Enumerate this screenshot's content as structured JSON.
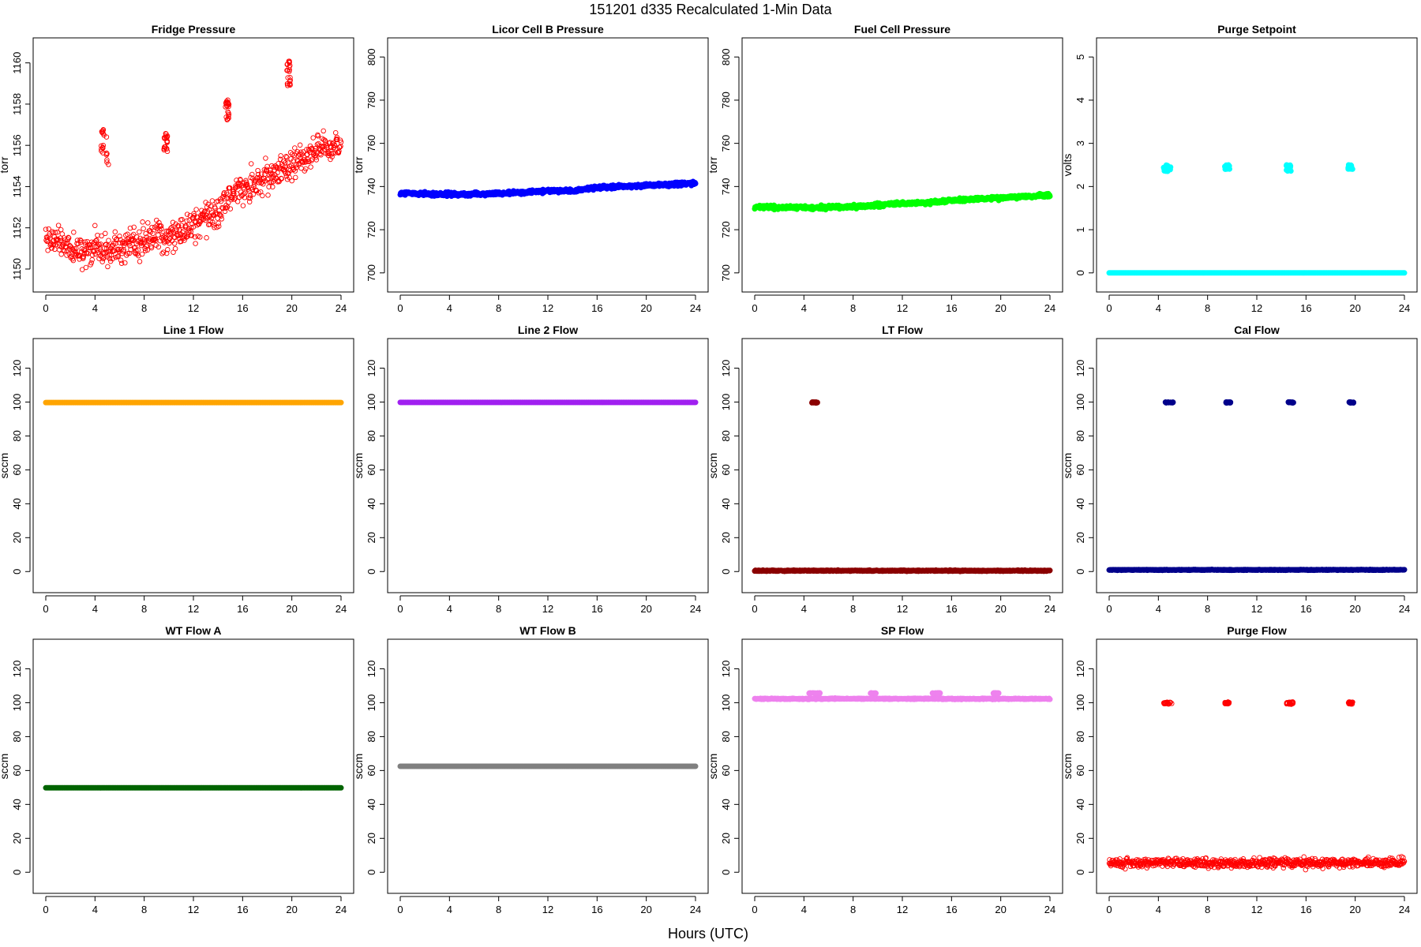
{
  "figure": {
    "title": "151201   d335   Recalculated 1-Min Data",
    "xlabel": "Hours (UTC)"
  },
  "chart_data": [
    {
      "type": "scatter",
      "title": "Fridge Pressure",
      "ylabel": "torr",
      "color": "#ff0000",
      "marker": "open-circle",
      "xlim": [
        0,
        24
      ],
      "x_ticks": [
        0,
        4,
        8,
        12,
        16,
        20,
        24
      ],
      "ylim": [
        1149.5,
        1160.6
      ],
      "y_ticks": [
        1150,
        1152,
        1154,
        1156,
        1158,
        1160
      ],
      "trend": [
        [
          0,
          1151.5
        ],
        [
          1,
          1151.4
        ],
        [
          2,
          1151.0
        ],
        [
          3,
          1150.8
        ],
        [
          4,
          1151.1
        ],
        [
          5,
          1150.9
        ],
        [
          6,
          1151.0
        ],
        [
          7,
          1151.2
        ],
        [
          8,
          1151.4
        ],
        [
          9,
          1151.6
        ],
        [
          10,
          1151.6
        ],
        [
          11,
          1151.8
        ],
        [
          12,
          1152.1
        ],
        [
          13,
          1152.5
        ],
        [
          14,
          1152.8
        ],
        [
          15,
          1153.6
        ],
        [
          16,
          1154.0
        ],
        [
          17,
          1154.2
        ],
        [
          18,
          1154.4
        ],
        [
          19,
          1154.8
        ],
        [
          20,
          1155.1
        ],
        [
          21,
          1155.5
        ],
        [
          22,
          1155.8
        ],
        [
          23,
          1155.9
        ],
        [
          24,
          1156.0
        ]
      ],
      "noise": 0.35,
      "clusters": [
        {
          "x": [
            4.5,
            5.1
          ],
          "y": [
            1155.0,
            1156.8
          ]
        },
        {
          "x": [
            9.6,
            9.9
          ],
          "y": [
            1155.7,
            1156.7
          ]
        },
        {
          "x": [
            14.6,
            14.9
          ],
          "y": [
            1157.2,
            1158.2
          ]
        },
        {
          "x": [
            19.6,
            19.9
          ],
          "y": [
            1158.9,
            1160.1
          ]
        }
      ]
    },
    {
      "type": "scatter",
      "title": "Licor Cell B Pressure",
      "ylabel": "torr",
      "color": "#0000ff",
      "marker": "filled",
      "xlim": [
        0,
        24
      ],
      "x_ticks": [
        0,
        4,
        8,
        12,
        16,
        20,
        24
      ],
      "ylim": [
        697,
        803
      ],
      "y_ticks": [
        700,
        720,
        740,
        760,
        780,
        800
      ],
      "trend": [
        [
          0,
          737
        ],
        [
          3,
          736.3
        ],
        [
          6,
          736.5
        ],
        [
          9,
          737
        ],
        [
          12,
          738
        ],
        [
          14,
          738
        ],
        [
          16,
          739.5
        ],
        [
          20,
          740.5
        ],
        [
          24,
          741.5
        ]
      ],
      "noise": 0.4
    },
    {
      "type": "scatter",
      "title": "Fuel Cell Pressure",
      "ylabel": "torr",
      "color": "#00ff00",
      "marker": "filled",
      "xlim": [
        0,
        24
      ],
      "x_ticks": [
        0,
        4,
        8,
        12,
        16,
        20,
        24
      ],
      "ylim": [
        697,
        803
      ],
      "y_ticks": [
        700,
        720,
        740,
        760,
        780,
        800
      ],
      "trend": [
        [
          0,
          730.8
        ],
        [
          2,
          730.2
        ],
        [
          4,
          730.3
        ],
        [
          6,
          730.3
        ],
        [
          9,
          731
        ],
        [
          12,
          732
        ],
        [
          14,
          732.5
        ],
        [
          16,
          733.5
        ],
        [
          20,
          734.8
        ],
        [
          24,
          736
        ]
      ],
      "noise": 0.4
    },
    {
      "type": "scatter",
      "title": "Purge Setpoint",
      "ylabel": "volts",
      "color": "#00ffff",
      "marker": "filled",
      "xlim": [
        0,
        24
      ],
      "x_ticks": [
        0,
        4,
        8,
        12,
        16,
        20,
        24
      ],
      "ylim": [
        -0.15,
        5.15
      ],
      "y_ticks": [
        0,
        1,
        2,
        3,
        4,
        5
      ],
      "trend": [
        [
          0,
          0
        ],
        [
          24,
          0
        ]
      ],
      "noise": 0,
      "clusters": [
        {
          "x": [
            4.4,
            5.0
          ],
          "y": [
            2.35,
            2.5
          ]
        },
        {
          "x": [
            9.4,
            9.8
          ],
          "y": [
            2.4,
            2.5
          ]
        },
        {
          "x": [
            14.4,
            14.8
          ],
          "y": [
            2.35,
            2.5
          ]
        },
        {
          "x": [
            19.4,
            19.8
          ],
          "y": [
            2.4,
            2.5
          ]
        }
      ]
    },
    {
      "type": "scatter",
      "title": "Line 1 Flow",
      "ylabel": "sccm",
      "color": "#ffa500",
      "marker": "filled",
      "xlim": [
        0,
        24
      ],
      "x_ticks": [
        0,
        4,
        8,
        12,
        16,
        20,
        24
      ],
      "ylim": [
        -5,
        130
      ],
      "y_ticks": [
        0,
        20,
        40,
        60,
        80,
        100,
        120
      ],
      "trend": [
        [
          0,
          99.7
        ],
        [
          24,
          99.7
        ]
      ],
      "noise": 0
    },
    {
      "type": "scatter",
      "title": "Line 2 Flow",
      "ylabel": "sccm",
      "color": "#a020f0",
      "marker": "filled",
      "xlim": [
        0,
        24
      ],
      "x_ticks": [
        0,
        4,
        8,
        12,
        16,
        20,
        24
      ],
      "ylim": [
        -5,
        130
      ],
      "y_ticks": [
        0,
        20,
        40,
        60,
        80,
        100,
        120
      ],
      "trend": [
        [
          0,
          99.8
        ],
        [
          24,
          99.8
        ]
      ],
      "noise": 0
    },
    {
      "type": "scatter",
      "title": "LT Flow",
      "ylabel": "sccm",
      "color": "#8b0000",
      "marker": "filled",
      "xlim": [
        0,
        24
      ],
      "x_ticks": [
        0,
        4,
        8,
        12,
        16,
        20,
        24
      ],
      "ylim": [
        -5,
        130
      ],
      "y_ticks": [
        0,
        20,
        40,
        60,
        80,
        100,
        120
      ],
      "trend": [
        [
          0,
          0.5
        ],
        [
          24,
          0.5
        ]
      ],
      "noise": 0.15,
      "clusters": [
        {
          "x": [
            4.6,
            5.1
          ],
          "y": [
            99.5,
            100
          ]
        }
      ]
    },
    {
      "type": "scatter",
      "title": "Cal Flow",
      "ylabel": "sccm",
      "color": "#00008b",
      "marker": "filled",
      "xlim": [
        0,
        24
      ],
      "x_ticks": [
        0,
        4,
        8,
        12,
        16,
        20,
        24
      ],
      "ylim": [
        -5,
        130
      ],
      "y_ticks": [
        0,
        20,
        40,
        60,
        80,
        100,
        120
      ],
      "trend": [
        [
          0,
          1
        ],
        [
          24,
          1
        ]
      ],
      "noise": 0.1,
      "clusters": [
        {
          "x": [
            4.5,
            5.2
          ],
          "y": [
            99.5,
            100
          ]
        },
        {
          "x": [
            9.5,
            9.9
          ],
          "y": [
            99.5,
            100
          ]
        },
        {
          "x": [
            14.5,
            15.0
          ],
          "y": [
            99.5,
            100
          ]
        },
        {
          "x": [
            19.5,
            19.9
          ],
          "y": [
            99.5,
            100
          ]
        }
      ]
    },
    {
      "type": "scatter",
      "title": "WT Flow A",
      "ylabel": "sccm",
      "color": "#006400",
      "marker": "filled",
      "xlim": [
        0,
        24
      ],
      "x_ticks": [
        0,
        4,
        8,
        12,
        16,
        20,
        24
      ],
      "ylim": [
        -5,
        130
      ],
      "y_ticks": [
        0,
        20,
        40,
        60,
        80,
        100,
        120
      ],
      "trend": [
        [
          0,
          49.8
        ],
        [
          24,
          49.8
        ]
      ],
      "noise": 0
    },
    {
      "type": "scatter",
      "title": "WT Flow B",
      "ylabel": "sccm",
      "color": "#808080",
      "marker": "filled",
      "xlim": [
        0,
        24
      ],
      "x_ticks": [
        0,
        4,
        8,
        12,
        16,
        20,
        24
      ],
      "ylim": [
        -5,
        130
      ],
      "y_ticks": [
        0,
        20,
        40,
        60,
        80,
        100,
        120
      ],
      "trend": [
        [
          0,
          62.5
        ],
        [
          24,
          62.5
        ]
      ],
      "noise": 0
    },
    {
      "type": "scatter",
      "title": "SP Flow",
      "ylabel": "sccm",
      "color": "#ee82ee",
      "marker": "filled",
      "xlim": [
        0,
        24
      ],
      "x_ticks": [
        0,
        4,
        8,
        12,
        16,
        20,
        24
      ],
      "ylim": [
        -5,
        130
      ],
      "y_ticks": [
        0,
        20,
        40,
        60,
        80,
        100,
        120
      ],
      "trend": [
        [
          0,
          102.3
        ],
        [
          24,
          102.3
        ]
      ],
      "noise": 0.15,
      "clusters": [
        {
          "x": [
            4.4,
            5.3
          ],
          "y": [
            105.5,
            105.8
          ]
        },
        {
          "x": [
            9.4,
            9.9
          ],
          "y": [
            105.5,
            105.8
          ]
        },
        {
          "x": [
            14.4,
            15.1
          ],
          "y": [
            105.5,
            105.8
          ]
        },
        {
          "x": [
            19.4,
            19.9
          ],
          "y": [
            105.5,
            105.8
          ]
        }
      ]
    },
    {
      "type": "scatter",
      "title": "Purge Flow",
      "ylabel": "sccm",
      "color": "#ff0000",
      "marker": "open-circle",
      "xlim": [
        0,
        24
      ],
      "x_ticks": [
        0,
        4,
        8,
        12,
        16,
        20,
        24
      ],
      "ylim": [
        -5,
        130
      ],
      "y_ticks": [
        0,
        20,
        40,
        60,
        80,
        100,
        120
      ],
      "trend": [
        [
          0,
          5.5
        ],
        [
          24,
          5.5
        ]
      ],
      "noise": 1.3,
      "clusters": [
        {
          "x": [
            4.4,
            5.1
          ],
          "y": [
            99.2,
            100.5
          ]
        },
        {
          "x": [
            9.4,
            9.8
          ],
          "y": [
            99.2,
            100.5
          ]
        },
        {
          "x": [
            14.4,
            15.0
          ],
          "y": [
            99.0,
            100.5
          ]
        },
        {
          "x": [
            19.4,
            19.8
          ],
          "y": [
            99.2,
            100.5
          ]
        }
      ]
    }
  ]
}
